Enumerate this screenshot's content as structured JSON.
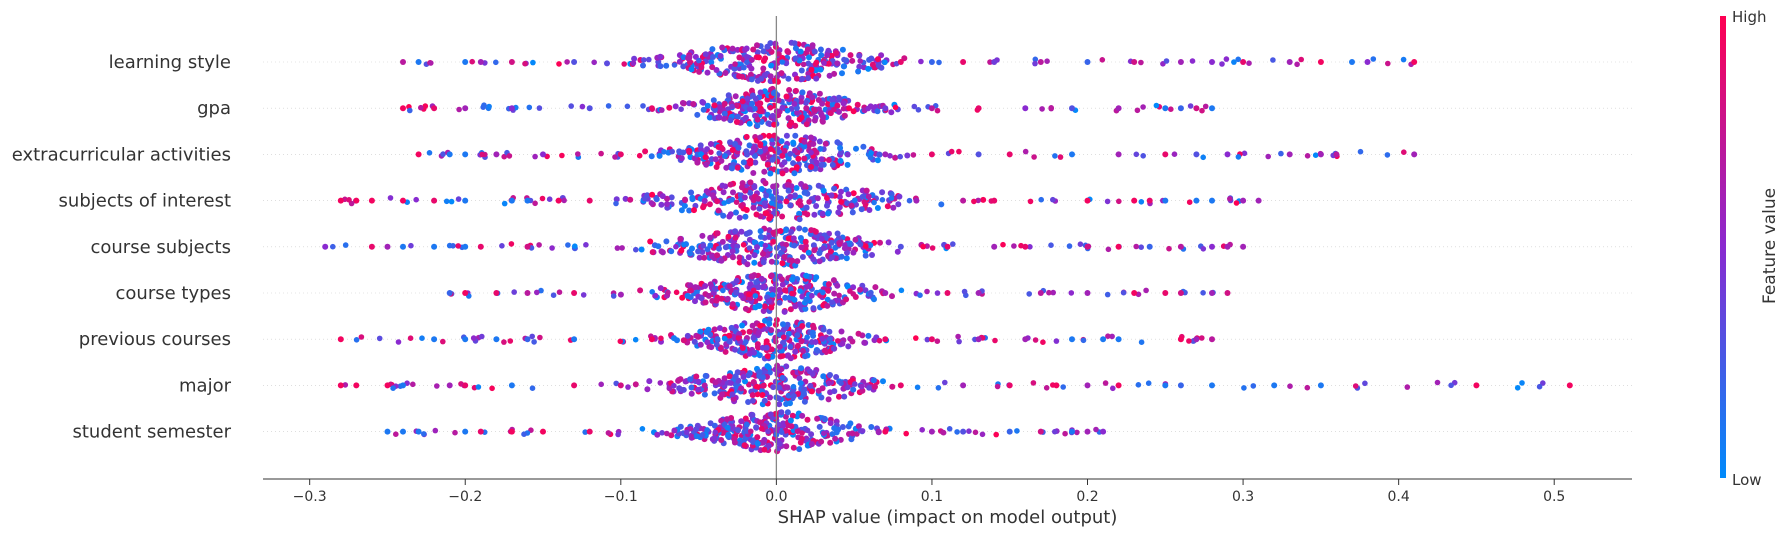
{
  "chart_data": {
    "type": "scatter",
    "subtype": "shap-beeswarm",
    "title": "",
    "xlabel": "SHAP value (impact on model output)",
    "xlim": [
      -0.33,
      0.55
    ],
    "x_ticks": [
      -0.3,
      -0.2,
      -0.1,
      0.0,
      0.1,
      0.2,
      0.3,
      0.4,
      0.5
    ],
    "x_tick_labels": [
      "−0.3",
      "−0.2",
      "−0.1",
      "0.0",
      "0.1",
      "0.2",
      "0.3",
      "0.4",
      "0.5"
    ],
    "features": [
      {
        "name": "learning style",
        "min": -0.24,
        "max": 0.41,
        "core": 0.06,
        "spread": 0.09,
        "points": [
          [
            -0.24,
            0.7
          ],
          [
            -0.23,
            0.1
          ],
          [
            -0.2,
            0.1
          ],
          [
            -0.19,
            0.6
          ],
          [
            -0.17,
            0.8
          ],
          [
            -0.13,
            0.3
          ],
          [
            0.08,
            0.9
          ],
          [
            0.1,
            0.2
          ],
          [
            0.12,
            0.9
          ],
          [
            0.14,
            0.4
          ],
          [
            0.17,
            0.7
          ],
          [
            0.2,
            0.2
          ],
          [
            0.23,
            0.8
          ],
          [
            0.26,
            0.6
          ],
          [
            0.28,
            0.5
          ],
          [
            0.3,
            0.9
          ],
          [
            0.33,
            0.6
          ],
          [
            0.35,
            0.95
          ],
          [
            0.37,
            0.1
          ],
          [
            0.38,
            0.5
          ],
          [
            0.41,
            0.95
          ]
        ]
      },
      {
        "name": "gpa",
        "min": -0.24,
        "max": 0.28,
        "core": 0.05,
        "spread": 0.07,
        "points": [
          [
            -0.24,
            0.95
          ],
          [
            -0.22,
            0.9
          ],
          [
            -0.2,
            0.6
          ],
          [
            -0.17,
            0.5
          ],
          [
            -0.12,
            0.3
          ],
          [
            -0.08,
            0.9
          ],
          [
            0.07,
            0.4
          ],
          [
            0.1,
            0.7
          ],
          [
            0.13,
            0.9
          ],
          [
            0.16,
            0.5
          ],
          [
            0.19,
            0.3
          ],
          [
            0.22,
            0.6
          ],
          [
            0.25,
            0.1
          ],
          [
            0.26,
            0.2
          ],
          [
            0.27,
            0.8
          ],
          [
            0.28,
            0.1
          ]
        ]
      },
      {
        "name": "extracurricular activities",
        "min": -0.23,
        "max": 0.41,
        "core": 0.05,
        "spread": 0.08,
        "points": [
          [
            -0.23,
            0.95
          ],
          [
            -0.21,
            0.1
          ],
          [
            -0.2,
            0.1
          ],
          [
            -0.18,
            0.6
          ],
          [
            -0.15,
            0.5
          ],
          [
            -0.1,
            0.9
          ],
          [
            0.07,
            0.6
          ],
          [
            0.1,
            0.9
          ],
          [
            0.13,
            0.3
          ],
          [
            0.15,
            0.9
          ],
          [
            0.19,
            0.1
          ],
          [
            0.22,
            0.6
          ],
          [
            0.25,
            0.9
          ],
          [
            0.27,
            0.3
          ],
          [
            0.29,
            0.5
          ],
          [
            0.33,
            0.6
          ],
          [
            0.35,
            0.6
          ],
          [
            0.36,
            0.7
          ],
          [
            0.41,
            0.6
          ]
        ]
      },
      {
        "name": "subjects of interest",
        "min": -0.28,
        "max": 0.31,
        "core": 0.06,
        "spread": 0.1,
        "points": [
          [
            -0.28,
            0.95
          ],
          [
            -0.27,
            0.95
          ],
          [
            -0.26,
            0.95
          ],
          [
            -0.24,
            0.95
          ],
          [
            -0.22,
            0.9
          ],
          [
            -0.2,
            0.1
          ],
          [
            -0.17,
            0.1
          ],
          [
            -0.16,
            0.1
          ],
          [
            -0.14,
            0.95
          ],
          [
            -0.12,
            0.9
          ],
          [
            0.09,
            0.6
          ],
          [
            0.12,
            0.7
          ],
          [
            0.14,
            0.9
          ],
          [
            0.2,
            0.95
          ],
          [
            0.23,
            0.95
          ],
          [
            0.24,
            0.9
          ],
          [
            0.25,
            0.1
          ],
          [
            0.27,
            0.1
          ],
          [
            0.28,
            0.1
          ],
          [
            0.3,
            0.6
          ],
          [
            0.31,
            0.6
          ]
        ]
      },
      {
        "name": "course subjects",
        "min": -0.29,
        "max": 0.3,
        "core": 0.05,
        "spread": 0.09,
        "points": [
          [
            -0.29,
            0.5
          ],
          [
            -0.26,
            0.9
          ],
          [
            -0.25,
            0.6
          ],
          [
            -0.24,
            0.1
          ],
          [
            -0.22,
            0.1
          ],
          [
            -0.2,
            0.1
          ],
          [
            -0.19,
            0.9
          ],
          [
            -0.16,
            0.8
          ],
          [
            0.08,
            0.3
          ],
          [
            0.11,
            0.9
          ],
          [
            0.14,
            0.6
          ],
          [
            0.16,
            0.9
          ],
          [
            0.2,
            0.8
          ],
          [
            0.22,
            0.95
          ],
          [
            0.24,
            0.2
          ],
          [
            0.26,
            0.7
          ],
          [
            0.28,
            0.5
          ],
          [
            0.29,
            0.6
          ],
          [
            0.3,
            0.6
          ]
        ]
      },
      {
        "name": "course types",
        "min": -0.21,
        "max": 0.29,
        "core": 0.05,
        "spread": 0.08,
        "points": [
          [
            -0.21,
            0.2
          ],
          [
            -0.2,
            0.95
          ],
          [
            -0.18,
            0.9
          ],
          [
            -0.16,
            0.7
          ],
          [
            -0.13,
            0.9
          ],
          [
            0.07,
            0.6
          ],
          [
            0.11,
            0.9
          ],
          [
            0.13,
            0.6
          ],
          [
            0.17,
            0.7
          ],
          [
            0.2,
            0.6
          ],
          [
            0.23,
            0.95
          ],
          [
            0.25,
            0.9
          ],
          [
            0.26,
            0.8
          ],
          [
            0.28,
            0.6
          ],
          [
            0.29,
            0.8
          ]
        ]
      },
      {
        "name": "previous courses",
        "min": -0.28,
        "max": 0.28,
        "core": 0.05,
        "spread": 0.07,
        "points": [
          [
            -0.28,
            0.95
          ],
          [
            -0.22,
            0.1
          ],
          [
            -0.2,
            0.1
          ],
          [
            -0.18,
            0.1
          ],
          [
            -0.16,
            0.2
          ],
          [
            -0.13,
            0.1
          ],
          [
            -0.08,
            0.95
          ],
          [
            0.07,
            0.9
          ],
          [
            0.1,
            0.9
          ],
          [
            0.13,
            0.6
          ],
          [
            0.16,
            0.6
          ],
          [
            0.19,
            0.1
          ],
          [
            0.21,
            0.1
          ],
          [
            0.22,
            0.1
          ],
          [
            0.26,
            0.95
          ],
          [
            0.27,
            0.6
          ],
          [
            0.28,
            0.7
          ]
        ]
      },
      {
        "name": "major",
        "min": -0.28,
        "max": 0.51,
        "core": 0.06,
        "spread": 0.08,
        "points": [
          [
            -0.28,
            0.95
          ],
          [
            -0.27,
            0.95
          ],
          [
            -0.25,
            0.95
          ],
          [
            -0.24,
            0.1
          ],
          [
            -0.21,
            0.6
          ],
          [
            -0.2,
            0.9
          ],
          [
            -0.17,
            0.1
          ],
          [
            -0.13,
            0.9
          ],
          [
            -0.1,
            0.8
          ],
          [
            0.08,
            0.9
          ],
          [
            0.12,
            0.6
          ],
          [
            0.15,
            0.9
          ],
          [
            0.18,
            0.95
          ],
          [
            0.2,
            0.6
          ],
          [
            0.22,
            0.95
          ],
          [
            0.25,
            0.1
          ],
          [
            0.26,
            0.2
          ],
          [
            0.28,
            0.1
          ],
          [
            0.32,
            0.1
          ],
          [
            0.35,
            0.1
          ],
          [
            0.45,
            0.95
          ],
          [
            0.51,
            0.95
          ]
        ]
      },
      {
        "name": "student semester",
        "min": -0.25,
        "max": 0.21,
        "core": 0.05,
        "spread": 0.07,
        "points": [
          [
            -0.25,
            0.1
          ],
          [
            -0.24,
            0.1
          ],
          [
            -0.23,
            0.1
          ],
          [
            -0.2,
            0.1
          ],
          [
            -0.19,
            0.9
          ],
          [
            -0.17,
            0.95
          ],
          [
            -0.15,
            0.95
          ],
          [
            -0.12,
            0.9
          ],
          [
            0.07,
            0.95
          ],
          [
            0.1,
            0.6
          ],
          [
            0.12,
            0.3
          ],
          [
            0.15,
            0.2
          ],
          [
            0.17,
            0.8
          ],
          [
            0.19,
            0.1
          ],
          [
            0.2,
            0.6
          ],
          [
            0.21,
            0.5
          ]
        ]
      }
    ],
    "colorbar": {
      "label": "Feature value",
      "high_label": "High",
      "low_label": "Low",
      "high_color": "#ff0052",
      "low_color": "#008bfb"
    },
    "grid": false,
    "legend": "colorbar-right"
  }
}
